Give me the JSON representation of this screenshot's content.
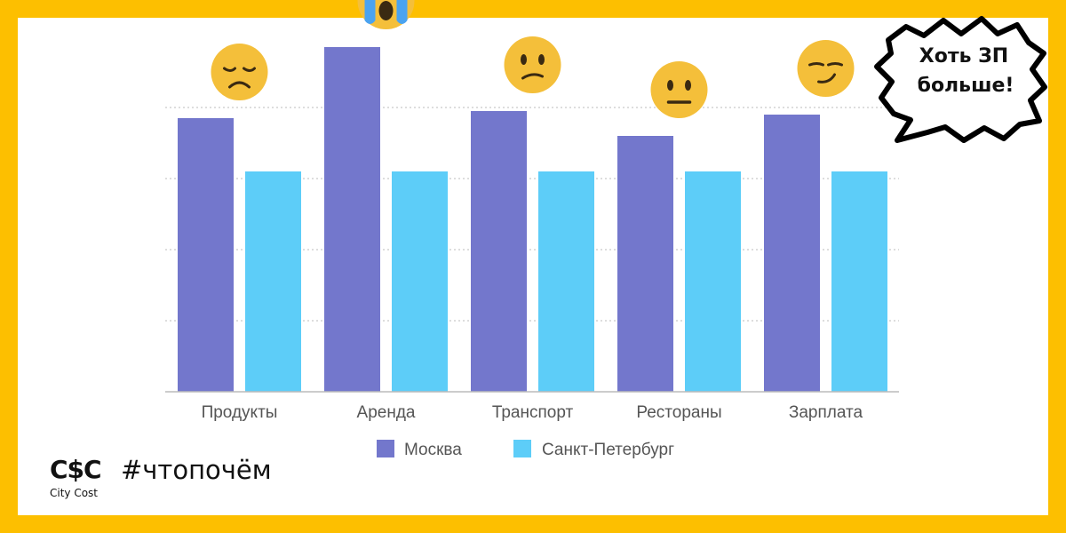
{
  "theme": {
    "frame_color": "#FDBF00",
    "series_colors": [
      "#7377CC",
      "#5DCDF8"
    ],
    "grid_color": "#BBBBBB",
    "emoji_color": "#F4BF3A"
  },
  "brand": {
    "logo": "C$C",
    "name": "City Cost"
  },
  "hashtag": "#чтопочём",
  "speech_bubble": {
    "line1": "Хоть ЗП",
    "line2": "больше!"
  },
  "emojis": [
    "disappointed-face",
    "loudly-crying-face",
    "confused-face",
    "neutral-face",
    "smirking-face"
  ],
  "chart_data": {
    "type": "bar",
    "title": "",
    "xlabel": "",
    "ylabel": "",
    "ylim": [
      0,
      100
    ],
    "grid": true,
    "legend_position": "bottom",
    "categories": [
      "Продукты",
      "Аренда",
      "Транспорт",
      "Рестораны",
      "Зарплата"
    ],
    "series": [
      {
        "name": "Москва",
        "values": [
          77,
          97,
          79,
          72,
          78
        ]
      },
      {
        "name": "Санкт-Петербург",
        "values": [
          62,
          62,
          62,
          62,
          62
        ]
      }
    ]
  }
}
